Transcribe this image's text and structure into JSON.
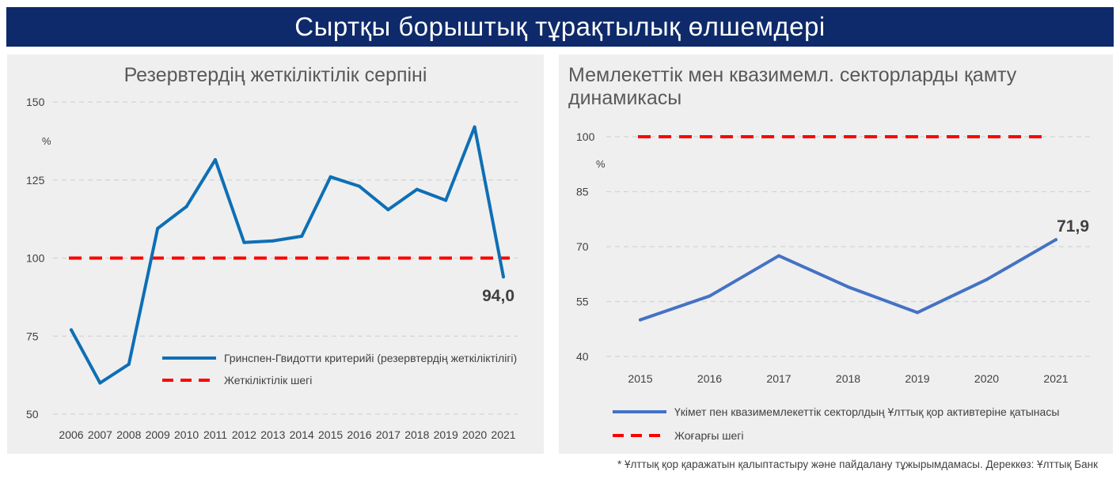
{
  "header": {
    "title": "Сыртқы борыштық тұрақтылық өлшемдері"
  },
  "footnote": "* Ұлттық қор қаражатын қалыптастыру және пайдалану тұжырымдамасы. Дереккөз: Ұлттық Банк",
  "chart_data": [
    {
      "type": "line",
      "title": "Резервтердің жеткіліктілік серпіні",
      "ylabel": "%",
      "ylim": [
        50,
        150
      ],
      "yticks": [
        50,
        75,
        100,
        125,
        150
      ],
      "grid": true,
      "legend_position": "bottom-right",
      "categories": [
        "2006",
        "2007",
        "2008",
        "2009",
        "2010",
        "2011",
        "2012",
        "2013",
        "2014",
        "2015",
        "2016",
        "2017",
        "2018",
        "2019",
        "2020",
        "2021"
      ],
      "series": [
        {
          "name": "Гринспен-Гвидотти критерийі (резервтердің жеткіліктілігі)",
          "color": "#0e6fb5",
          "style": "solid",
          "values": [
            77,
            60,
            66,
            109.5,
            116.5,
            131.5,
            105,
            105.5,
            107,
            126,
            123,
            115.5,
            122,
            118.5,
            142,
            94.0
          ]
        },
        {
          "name": "Жеткіліктілік шегі",
          "color": "#ff0000",
          "style": "dashed",
          "values": [
            100,
            100,
            100,
            100,
            100,
            100,
            100,
            100,
            100,
            100,
            100,
            100,
            100,
            100,
            100,
            100
          ]
        }
      ],
      "annotation": "94,0"
    },
    {
      "type": "line",
      "title": "Мемлекеттік мен квазимемл. секторларды қамту динамикасы",
      "ylabel": "%",
      "ylim": [
        40,
        100
      ],
      "yticks": [
        40,
        55,
        70,
        85,
        100
      ],
      "grid": true,
      "legend_position": "bottom",
      "categories": [
        "2015",
        "2016",
        "2017",
        "2018",
        "2019",
        "2020",
        "2021"
      ],
      "series": [
        {
          "name": "Үкімет пен квазимемлекеттік секторлдың Ұлттық қор активтеріне қатынасы",
          "color": "#4472c4",
          "style": "solid",
          "values": [
            50,
            56.5,
            67.5,
            59,
            52,
            61,
            71.9
          ]
        },
        {
          "name": "Жоғарғы шегі",
          "color": "#ff0000",
          "style": "dashed",
          "values": [
            100,
            100,
            100,
            100,
            100,
            100,
            100
          ]
        }
      ],
      "annotation": "71,9"
    }
  ]
}
